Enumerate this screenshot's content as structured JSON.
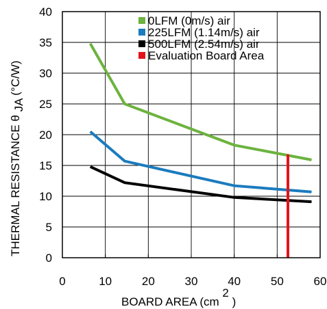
{
  "chart_data": {
    "type": "line",
    "xlabel": "BOARD AREA (cm",
    "xlabel_superscript": "2",
    "xlabel_suffix": ")",
    "ylabel": "THERMAL RESISTANCE θ",
    "ylabel_subscript": "JA",
    "ylabel_suffix": "(°C/W)",
    "xlim": [
      0,
      60
    ],
    "ylim": [
      0,
      40
    ],
    "x_ticks": [
      0,
      10,
      20,
      30,
      40,
      50,
      60
    ],
    "y_ticks": [
      0,
      5,
      10,
      15,
      20,
      25,
      30,
      35,
      40
    ],
    "grid": true,
    "legend_position": "top-right",
    "series": [
      {
        "name": "0LFM (0m/s) air",
        "color": "#6cb33f",
        "x": [
          6.5,
          14.5,
          40,
          58
        ],
        "y": [
          34.8,
          25,
          18.3,
          15.9
        ]
      },
      {
        "name": "225LFM (1.14m/s) air",
        "color": "#1b7bbf",
        "x": [
          6.5,
          14.5,
          40,
          58
        ],
        "y": [
          20.5,
          15.7,
          11.7,
          10.7
        ]
      },
      {
        "name": "500LFM (2.54m/s) air",
        "color": "#000000",
        "x": [
          6.5,
          14.5,
          40,
          58
        ],
        "y": [
          14.8,
          12.2,
          9.8,
          9.1
        ]
      },
      {
        "name": "Evaluation Board Area",
        "color": "#e3141b",
        "x": [
          52.5,
          52.5
        ],
        "y": [
          0,
          16.8
        ]
      }
    ]
  }
}
